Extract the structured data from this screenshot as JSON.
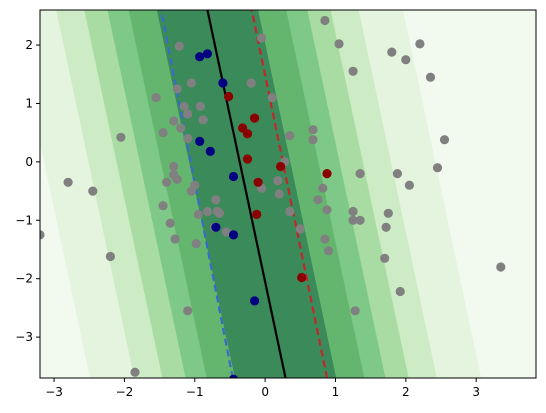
{
  "chart_data": {
    "type": "scatter",
    "title": "",
    "xlabel": "",
    "ylabel": "",
    "xlim": [
      -3.2,
      3.85
    ],
    "ylim": [
      -3.7,
      2.6
    ],
    "xticks": [
      -3,
      -2,
      -1,
      0,
      1,
      2,
      3
    ],
    "yticks": [
      -3,
      -2,
      -1,
      0,
      1,
      2
    ],
    "grid": false,
    "legend": "none",
    "decision_boundary": {
      "x_at_y_min": 0.29,
      "x_at_y_max": -0.82,
      "color": "#000000",
      "style": "solid"
    },
    "margins": [
      {
        "side": "negative",
        "x_at_y_min": -0.46,
        "x_at_y_max": -1.48,
        "color": "#3a6bc9",
        "style": "dashed"
      },
      {
        "side": "positive",
        "x_at_y_min": 0.88,
        "x_at_y_max": -0.19,
        "color": "#c0282d",
        "style": "dashed"
      }
    ],
    "contour_levels": [
      {
        "offset": 0.72,
        "color": "#3b8a5a"
      },
      {
        "offset": 1.12,
        "color": "#64b66f"
      },
      {
        "offset": 1.42,
        "color": "#7ec987"
      },
      {
        "offset": 1.75,
        "color": "#a9dca2"
      },
      {
        "offset": 2.15,
        "color": "#cdecc6"
      },
      {
        "offset": 2.78,
        "color": "#e4f4de"
      },
      {
        "offset": 99,
        "color": "#f2f9ef"
      }
    ],
    "series": [
      {
        "color": "#808080",
        "points": [
          [
            -3.2,
            -1.25
          ],
          [
            -2.8,
            -0.35
          ],
          [
            -2.45,
            -0.5
          ],
          [
            -2.2,
            -1.62
          ],
          [
            -2.05,
            0.42
          ],
          [
            -1.85,
            -3.6
          ],
          [
            -1.55,
            1.1
          ],
          [
            -1.45,
            0.5
          ],
          [
            -1.45,
            -0.75
          ],
          [
            -1.4,
            -0.35
          ],
          [
            -1.35,
            -1.05
          ],
          [
            -1.3,
            -0.08
          ],
          [
            -1.3,
            -0.22
          ],
          [
            -1.28,
            -1.32
          ],
          [
            -1.25,
            -0.3
          ],
          [
            -1.3,
            0.7
          ],
          [
            -1.25,
            1.25
          ],
          [
            -1.22,
            1.98
          ],
          [
            -1.2,
            0.58
          ],
          [
            -1.15,
            0.95
          ],
          [
            -1.1,
            0.4
          ],
          [
            -1.1,
            0.82
          ],
          [
            -1.05,
            1.35
          ],
          [
            -1.05,
            -0.5
          ],
          [
            -1.1,
            -2.55
          ],
          [
            -1.0,
            -0.4
          ],
          [
            -0.98,
            -1.4
          ],
          [
            -0.95,
            -0.9
          ],
          [
            -0.92,
            0.95
          ],
          [
            -0.88,
            0.72
          ],
          [
            -0.82,
            -0.85
          ],
          [
            -0.7,
            -0.65
          ],
          [
            -0.72,
            -1.12
          ],
          [
            -0.68,
            -0.85
          ],
          [
            -0.65,
            -0.88
          ],
          [
            -0.55,
            -1.2
          ],
          [
            -0.2,
            1.35
          ],
          [
            -0.05,
            2.12
          ],
          [
            -0.05,
            -0.45
          ],
          [
            0.1,
            1.1
          ],
          [
            0.18,
            -0.32
          ],
          [
            0.2,
            -0.55
          ],
          [
            0.28,
            0.0
          ],
          [
            0.35,
            -0.85
          ],
          [
            0.35,
            0.45
          ],
          [
            0.5,
            -1.15
          ],
          [
            0.68,
            0.55
          ],
          [
            0.68,
            0.38
          ],
          [
            0.75,
            -0.65
          ],
          [
            0.82,
            -0.45
          ],
          [
            0.88,
            -0.82
          ],
          [
            0.85,
            -1.32
          ],
          [
            0.9,
            -1.52
          ],
          [
            0.85,
            2.42
          ],
          [
            1.05,
            2.02
          ],
          [
            1.25,
            1.55
          ],
          [
            1.25,
            -0.85
          ],
          [
            1.25,
            -1.0
          ],
          [
            1.28,
            -2.55
          ],
          [
            1.35,
            -1.0
          ],
          [
            1.35,
            -0.2
          ],
          [
            1.7,
            -1.65
          ],
          [
            1.72,
            -1.12
          ],
          [
            1.75,
            -0.88
          ],
          [
            1.8,
            1.88
          ],
          [
            1.88,
            -0.2
          ],
          [
            1.92,
            -2.22
          ],
          [
            2.0,
            1.75
          ],
          [
            2.05,
            -0.4
          ],
          [
            2.2,
            2.02
          ],
          [
            2.35,
            1.45
          ],
          [
            2.45,
            -0.1
          ],
          [
            2.55,
            0.38
          ],
          [
            3.35,
            -1.8
          ]
        ]
      },
      {
        "color": "#000080",
        "points": [
          [
            -0.93,
            1.8
          ],
          [
            -0.82,
            1.85
          ],
          [
            -0.6,
            1.35
          ],
          [
            -0.93,
            0.35
          ],
          [
            -0.78,
            0.18
          ],
          [
            -0.45,
            -0.25
          ],
          [
            -0.7,
            -1.12
          ],
          [
            -0.45,
            -1.25
          ],
          [
            -0.15,
            -2.38
          ],
          [
            -0.45,
            -3.72
          ]
        ]
      },
      {
        "color": "#8b0000",
        "points": [
          [
            -0.52,
            1.12
          ],
          [
            -0.15,
            0.75
          ],
          [
            -0.32,
            0.58
          ],
          [
            -0.25,
            0.48
          ],
          [
            -0.25,
            0.05
          ],
          [
            -0.1,
            -0.35
          ],
          [
            -0.12,
            -0.9
          ],
          [
            0.22,
            -0.08
          ],
          [
            0.88,
            -0.2
          ],
          [
            0.52,
            -1.98
          ]
        ]
      }
    ]
  }
}
